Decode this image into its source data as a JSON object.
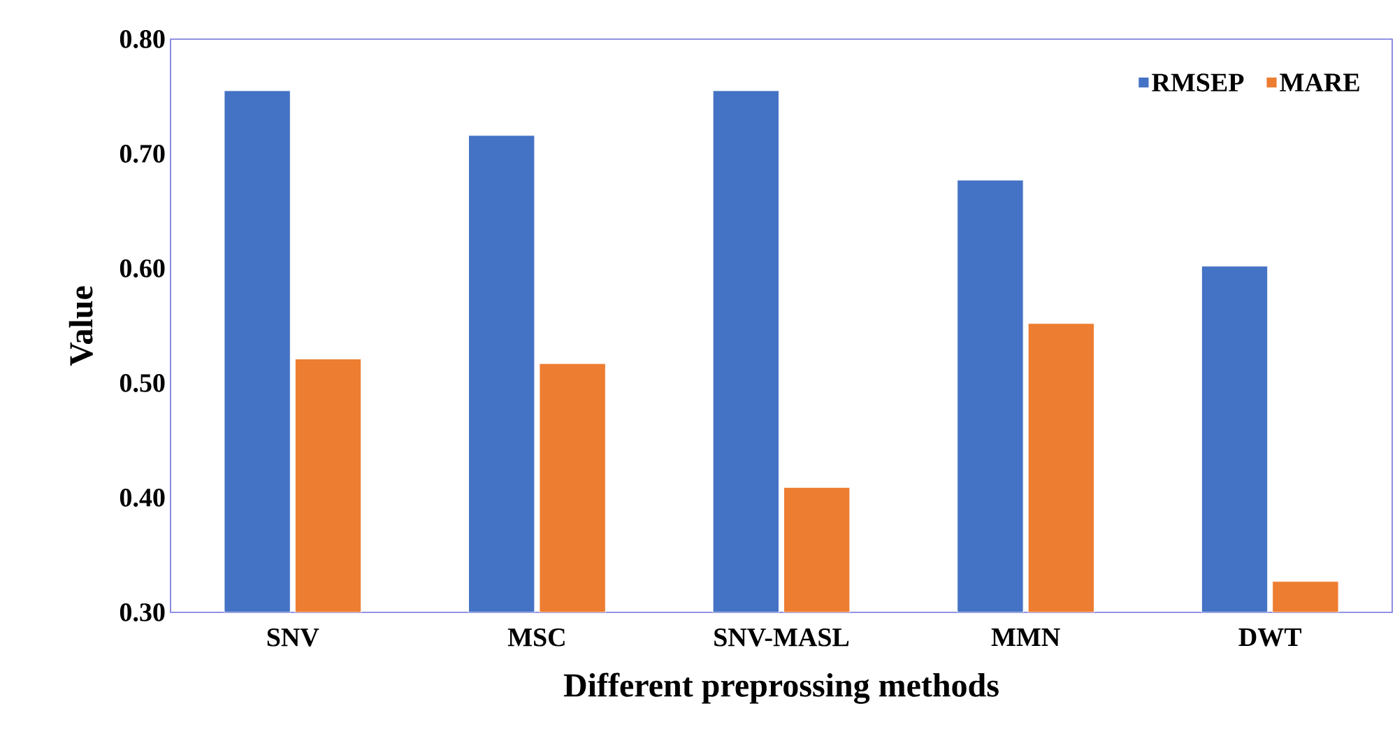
{
  "chart_data": {
    "type": "bar",
    "xlabel": "Different preprossing methods",
    "ylabel": "Value",
    "categories": [
      "SNV",
      "MSC",
      "SNV-MASL",
      "MMN",
      "DWT"
    ],
    "series": [
      {
        "name": "RMSEP",
        "color": "#4472c4",
        "values": [
          0.755,
          0.716,
          0.755,
          0.677,
          0.602
        ]
      },
      {
        "name": "MARE",
        "color": "#ed7d31",
        "values": [
          0.521,
          0.517,
          0.409,
          0.552,
          0.327
        ]
      }
    ],
    "ylim": [
      0.3,
      0.8
    ],
    "yticks": [
      {
        "value": 0.3,
        "label": "0.30"
      },
      {
        "value": 0.4,
        "label": "0.40"
      },
      {
        "value": 0.5,
        "label": "0.50"
      },
      {
        "value": 0.6,
        "label": "0.60"
      },
      {
        "value": 0.7,
        "label": "0.70"
      },
      {
        "value": 0.8,
        "label": "0.80"
      }
    ],
    "grid": false,
    "legend": "top right"
  }
}
